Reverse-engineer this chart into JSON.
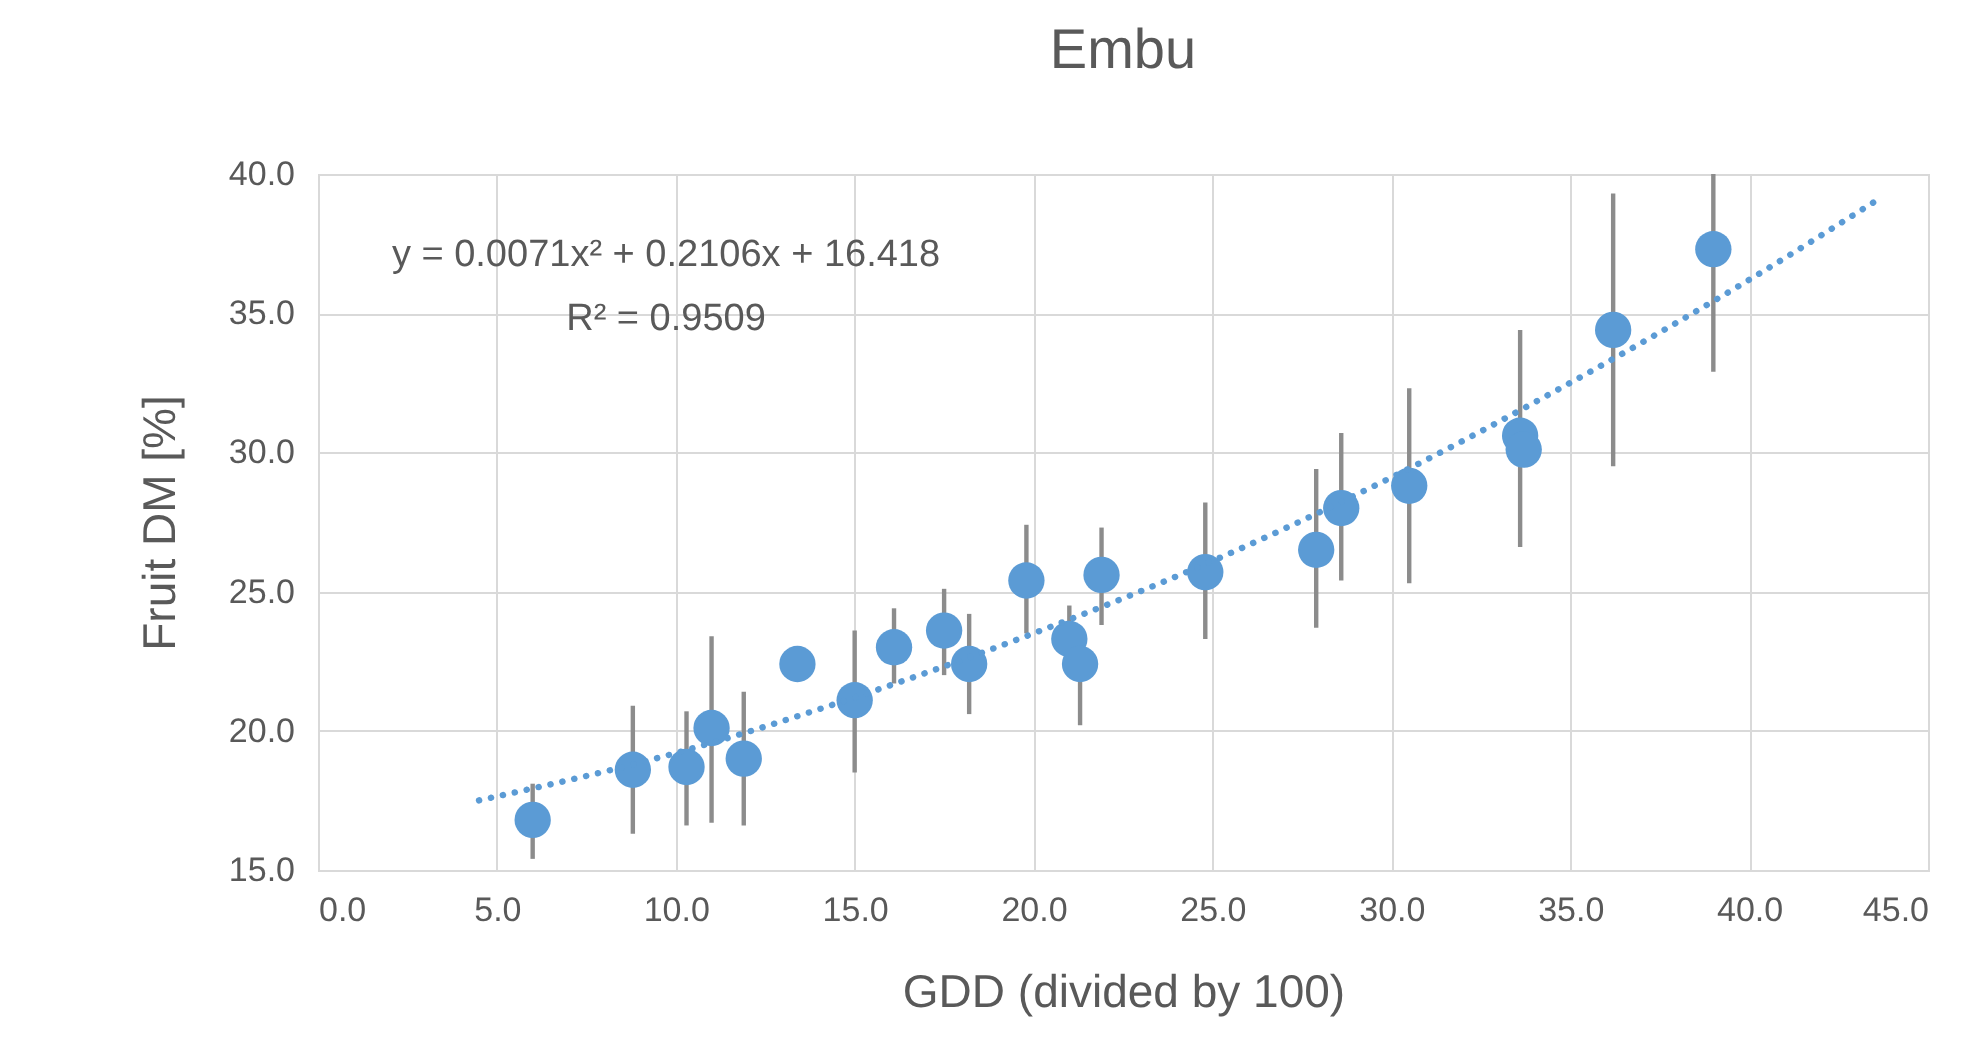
{
  "chart_data": {
    "type": "scatter",
    "title": "Embu",
    "xlabel": "GDD (divided by 100)",
    "ylabel": "Fruit DM [%]",
    "annotations": [
      "y = 0.0071x² + 0.2106x + 16.418",
      "R² = 0.9509"
    ],
    "xlim": [
      0,
      45
    ],
    "ylim": [
      15,
      40
    ],
    "xticks": [
      {
        "value": 0,
        "label": "0.0"
      },
      {
        "value": 5,
        "label": "5.0"
      },
      {
        "value": 10,
        "label": "10.0"
      },
      {
        "value": 15,
        "label": "15.0"
      },
      {
        "value": 20,
        "label": "20.0"
      },
      {
        "value": 25,
        "label": "25.0"
      },
      {
        "value": 30,
        "label": "30.0"
      },
      {
        "value": 35,
        "label": "35.0"
      },
      {
        "value": 40,
        "label": "40.0"
      },
      {
        "value": 45,
        "label": "45.0"
      }
    ],
    "yticks": [
      {
        "value": 15,
        "label": "15.0"
      },
      {
        "value": 20,
        "label": "20.0"
      },
      {
        "value": 25,
        "label": "25.0"
      },
      {
        "value": 30,
        "label": "30.0"
      },
      {
        "value": 35,
        "label": "35.0"
      },
      {
        "value": 40,
        "label": "40.0"
      }
    ],
    "grid": true,
    "series": [
      {
        "marker": "circle",
        "color": "#5b9bd5",
        "x": [
          6.0,
          8.8,
          10.3,
          11.0,
          11.9,
          13.4,
          15.0,
          16.1,
          17.5,
          18.2,
          19.8,
          21.0,
          21.3,
          21.9,
          24.8,
          27.9,
          28.6,
          30.5,
          33.6,
          33.7,
          36.2,
          39.0
        ],
        "values": [
          16.8,
          18.6,
          18.7,
          20.1,
          19.0,
          22.4,
          21.1,
          23.0,
          23.6,
          22.4,
          25.4,
          23.3,
          22.4,
          25.6,
          25.7,
          26.5,
          28.0,
          28.8,
          30.6,
          30.1,
          34.4,
          37.3
        ],
        "errors": [
          [
            15.4,
            18.1
          ],
          [
            16.3,
            20.9
          ],
          [
            16.6,
            20.7
          ],
          [
            16.7,
            23.4
          ],
          [
            16.6,
            21.4
          ],
          null,
          [
            18.5,
            23.6
          ],
          [
            21.7,
            24.4
          ],
          [
            22.0,
            25.1
          ],
          [
            20.6,
            24.2
          ],
          [
            23.5,
            27.4
          ],
          [
            22.0,
            24.5
          ],
          [
            20.2,
            23.0
          ],
          [
            23.8,
            27.3
          ],
          [
            23.3,
            28.2
          ],
          [
            23.7,
            29.4
          ],
          [
            25.4,
            30.7
          ],
          [
            25.3,
            32.3
          ],
          [
            26.6,
            34.4
          ],
          null,
          [
            29.5,
            39.3
          ],
          [
            32.9,
            40.0
          ]
        ]
      },
      {
        "type": "line",
        "color": "#5b9bd5",
        "line_style": "dotted",
        "x": [
          4.5,
          10,
          15,
          20,
          25,
          30,
          35,
          40,
          43.5
        ],
        "values": [
          17.5,
          19.2,
          21.2,
          23.5,
          26.1,
          29.1,
          32.5,
          36.2,
          39.0
        ]
      }
    ]
  }
}
